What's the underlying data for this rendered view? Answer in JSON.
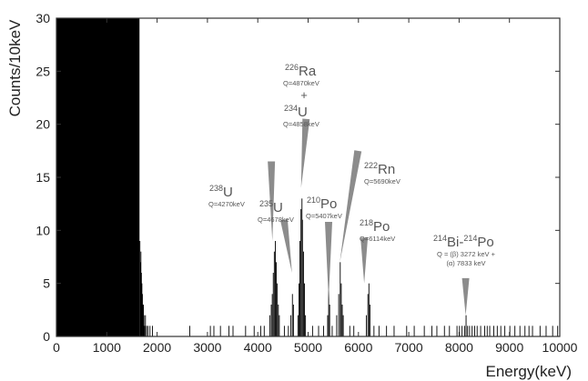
{
  "chart_data": {
    "type": "bar",
    "xlabel": "Energy(keV)",
    "ylabel": "Counts/10keV",
    "xlim": [
      0,
      10000
    ],
    "ylim": [
      0,
      30
    ],
    "xticks": [
      0,
      1000,
      2000,
      3000,
      4000,
      5000,
      6000,
      7000,
      8000,
      9000,
      10000
    ],
    "yticks": [
      0,
      5,
      10,
      15,
      20,
      25,
      30
    ],
    "bin_width": 10,
    "grid": false,
    "bar_color": "#000000",
    "low_energy_region": {
      "from": 0,
      "to": 1650,
      "counts_above": 30
    },
    "tail": [
      {
        "x": 1650,
        "y": 9
      },
      {
        "x": 1660,
        "y": 7
      },
      {
        "x": 1670,
        "y": 8
      },
      {
        "x": 1680,
        "y": 6
      },
      {
        "x": 1690,
        "y": 5
      },
      {
        "x": 1700,
        "y": 4
      },
      {
        "x": 1710,
        "y": 3
      },
      {
        "x": 1720,
        "y": 3
      },
      {
        "x": 1730,
        "y": 2
      },
      {
        "x": 1740,
        "y": 1
      },
      {
        "x": 1760,
        "y": 2
      },
      {
        "x": 1780,
        "y": 1
      },
      {
        "x": 1810,
        "y": 1
      },
      {
        "x": 1850,
        "y": 1
      },
      {
        "x": 1900,
        "y": 1
      }
    ],
    "peaks": [
      {
        "name": "238U",
        "bins": [
          [
            4230,
            2
          ],
          [
            4260,
            3
          ],
          [
            4280,
            4
          ],
          [
            4300,
            6
          ],
          [
            4320,
            8
          ],
          [
            4340,
            9
          ],
          [
            4360,
            7
          ],
          [
            4380,
            5
          ],
          [
            4400,
            3
          ],
          [
            4420,
            2
          ]
        ]
      },
      {
        "name": "235U",
        "bins": [
          [
            4650,
            2
          ],
          [
            4680,
            4
          ],
          [
            4700,
            3
          ]
        ]
      },
      {
        "name": "226Ra + 234U",
        "bins": [
          [
            4790,
            2
          ],
          [
            4810,
            5
          ],
          [
            4830,
            9
          ],
          [
            4850,
            12
          ],
          [
            4870,
            13
          ],
          [
            4880,
            11
          ],
          [
            4900,
            8
          ],
          [
            4920,
            5
          ],
          [
            4940,
            2
          ]
        ]
      },
      {
        "name": "210Po",
        "bins": [
          [
            5380,
            2
          ],
          [
            5400,
            5
          ],
          [
            5420,
            3
          ]
        ]
      },
      {
        "name": "222Rn",
        "bins": [
          [
            5560,
            2
          ],
          [
            5600,
            4
          ],
          [
            5630,
            7
          ],
          [
            5650,
            5
          ],
          [
            5670,
            3
          ],
          [
            5690,
            2
          ]
        ]
      },
      {
        "name": "218Po",
        "bins": [
          [
            6150,
            2
          ],
          [
            6180,
            4
          ],
          [
            6200,
            5
          ],
          [
            6220,
            3
          ]
        ]
      },
      {
        "name": "214Bi-214Po",
        "bins": [
          [
            8100,
            1
          ],
          [
            8130,
            2
          ],
          [
            8160,
            1
          ]
        ]
      }
    ],
    "sparse_counts": [
      2640,
      3050,
      3120,
      3250,
      3420,
      3500,
      3750,
      3920,
      4050,
      4120,
      4520,
      4600,
      5080,
      5200,
      5300,
      5470,
      5820,
      5900,
      6300,
      6400,
      6550,
      6700,
      6950,
      7100,
      7300,
      7450,
      7550,
      7700,
      7800,
      7950,
      8000,
      8050,
      8200,
      8250,
      8300,
      8350,
      8420,
      8500,
      8550,
      8600,
      8680,
      8750,
      8820,
      8900,
      9000,
      9100,
      9200,
      9300,
      9380,
      9450,
      9600,
      9720,
      9850,
      9950
    ],
    "annotations": [
      {
        "id": "u238",
        "isotope": "U",
        "mass": "238",
        "q": "Q=4270keV"
      },
      {
        "id": "u235",
        "isotope": "U",
        "mass": "235",
        "q": "Q=4678keV"
      },
      {
        "id": "ra226",
        "isotope": "Ra",
        "mass": "226",
        "q": "Q=4870keV"
      },
      {
        "id": "plus",
        "text": "+"
      },
      {
        "id": "u234",
        "isotope": "U",
        "mass": "234",
        "q": "Q=4858keV"
      },
      {
        "id": "po210",
        "isotope": "Po",
        "mass": "210",
        "q": "Q=5407keV"
      },
      {
        "id": "rn222",
        "isotope": "Rn",
        "mass": "222",
        "q": "Q=5690keV"
      },
      {
        "id": "po218",
        "isotope": "Po",
        "mass": "218",
        "q": "Q=6114keV"
      },
      {
        "id": "bipo",
        "parts": [
          {
            "mass": "214",
            "isotope": "Bi-"
          },
          {
            "mass": "214",
            "isotope": "Po"
          }
        ],
        "q_lines": [
          "Q = (β) 3272 keV +",
          "(α) 7833 keV"
        ]
      }
    ],
    "arrows": [
      {
        "id": "arrow-u238",
        "from": [
          4270,
          16.5
        ],
        "to": [
          4290,
          9
        ]
      },
      {
        "id": "arrow-u235",
        "from": [
          4520,
          11
        ],
        "to": [
          4680,
          6
        ]
      },
      {
        "id": "arrow-ra226-u234",
        "from": [
          4960,
          20.5
        ],
        "to": [
          4860,
          14
        ]
      },
      {
        "id": "arrow-po210",
        "from": [
          5407,
          10.8
        ],
        "to": [
          5407,
          3.5
        ]
      },
      {
        "id": "arrow-rn222",
        "from": [
          5990,
          17.5
        ],
        "to": [
          5630,
          7
        ]
      },
      {
        "id": "arrow-po218",
        "from": [
          6114,
          9.3
        ],
        "to": [
          6114,
          5
        ]
      },
      {
        "id": "arrow-bipo",
        "from": [
          8130,
          5.5
        ],
        "to": [
          8130,
          2
        ]
      }
    ],
    "arrow_color": "#8c8c8c"
  }
}
